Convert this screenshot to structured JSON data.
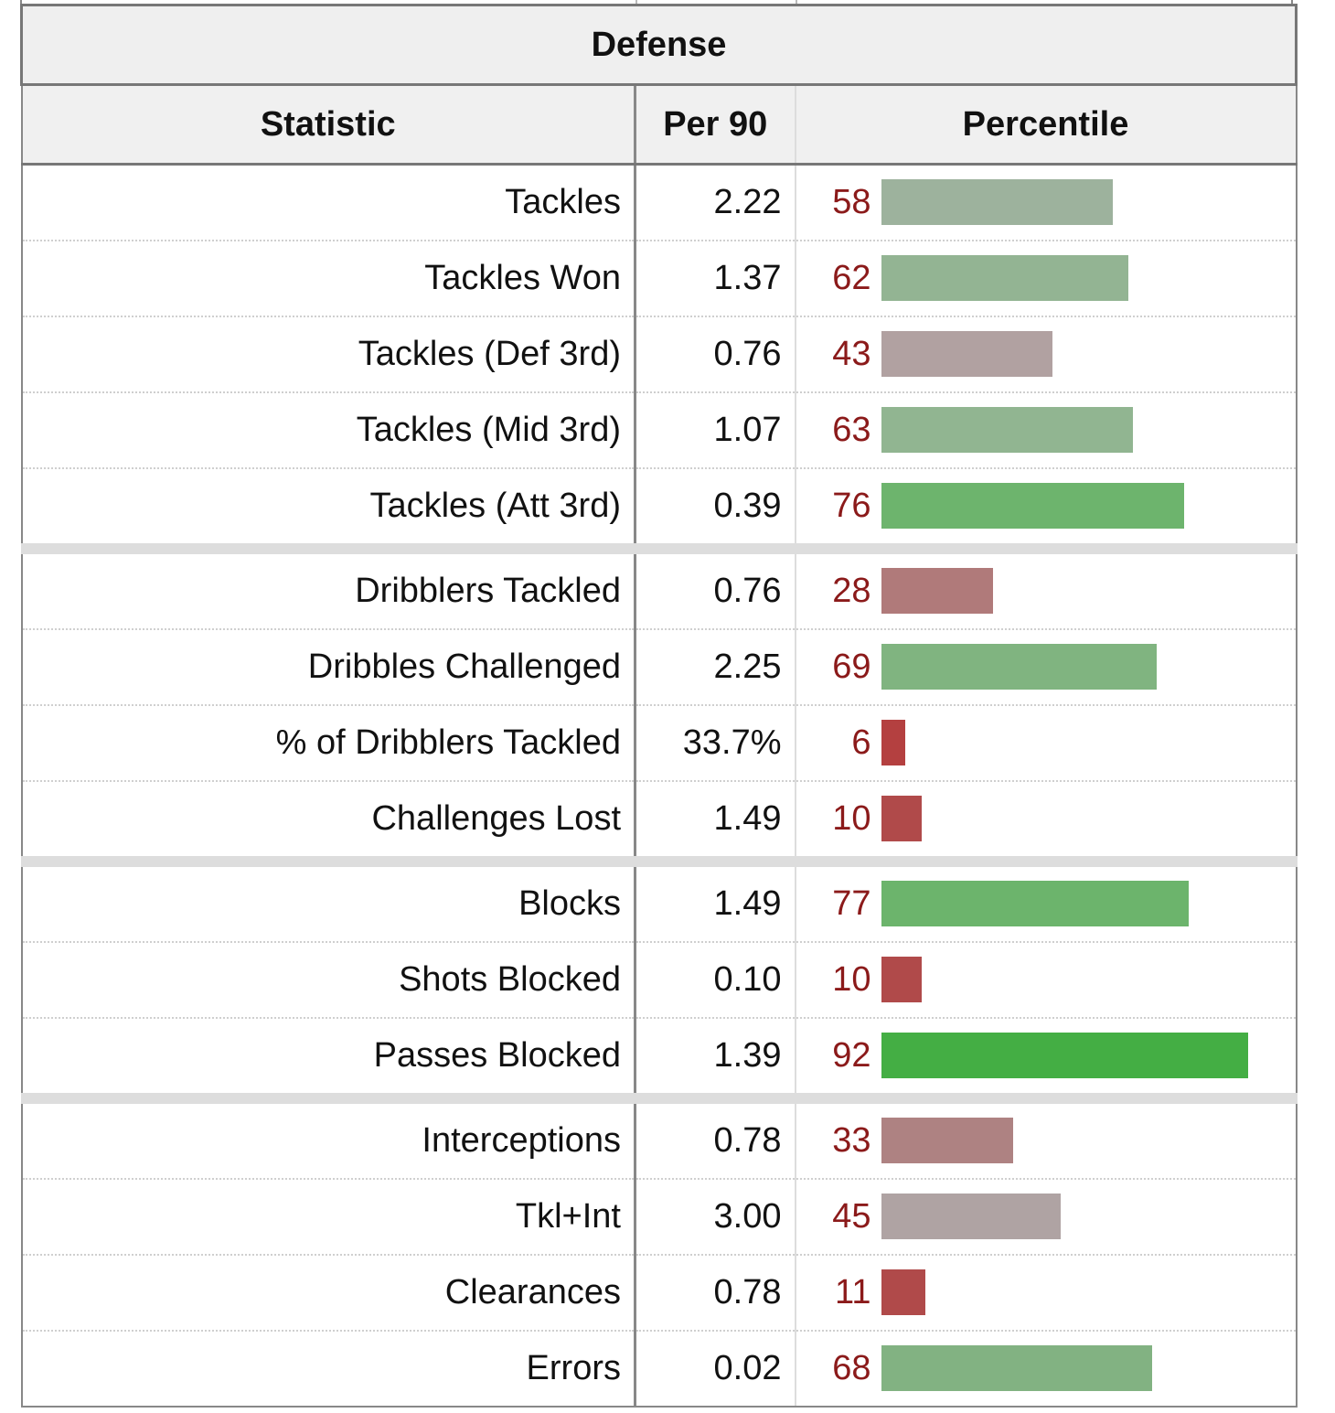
{
  "chart_data": {
    "type": "table",
    "title": "Defense",
    "columns": [
      "Statistic",
      "Per 90",
      "Percentile"
    ],
    "rows": [
      {
        "stat": "Tackles",
        "per90": "2.22",
        "percentile": 58,
        "color": "#9db29d"
      },
      {
        "stat": "Tackles Won",
        "per90": "1.37",
        "percentile": 62,
        "color": "#93b493"
      },
      {
        "stat": "Tackles (Def 3rd)",
        "per90": "0.76",
        "percentile": 43,
        "color": "#b1a1a1"
      },
      {
        "stat": "Tackles (Mid 3rd)",
        "per90": "1.07",
        "percentile": 63,
        "color": "#91b591"
      },
      {
        "stat": "Tackles (Att 3rd)",
        "per90": "0.39",
        "percentile": 76,
        "color": "#6db46d",
        "group_end": true
      },
      {
        "stat": "Dribblers Tackled",
        "per90": "0.76",
        "percentile": 28,
        "color": "#b07a7a"
      },
      {
        "stat": "Dribbles Challenged",
        "per90": "2.25",
        "percentile": 69,
        "color": "#80b480"
      },
      {
        "stat": "% of Dribblers Tackled",
        "per90": "33.7%",
        "percentile": 6,
        "color": "#b44040"
      },
      {
        "stat": "Challenges Lost",
        "per90": "1.49",
        "percentile": 10,
        "color": "#b04a4a",
        "group_end": true
      },
      {
        "stat": "Blocks",
        "per90": "1.49",
        "percentile": 77,
        "color": "#6cb46c"
      },
      {
        "stat": "Shots Blocked",
        "per90": "0.10",
        "percentile": 10,
        "color": "#b04a4a"
      },
      {
        "stat": "Passes Blocked",
        "per90": "1.39",
        "percentile": 92,
        "color": "#44ae44",
        "group_end": true
      },
      {
        "stat": "Interceptions",
        "per90": "0.78",
        "percentile": 33,
        "color": "#ae8282"
      },
      {
        "stat": "Tkl+Int",
        "per90": "3.00",
        "percentile": 45,
        "color": "#afa3a3"
      },
      {
        "stat": "Clearances",
        "per90": "0.78",
        "percentile": 11,
        "color": "#b04a4a"
      },
      {
        "stat": "Errors",
        "per90": "0.02",
        "percentile": 68,
        "color": "#82b282"
      }
    ],
    "percentile_range": [
      0,
      100
    ]
  }
}
